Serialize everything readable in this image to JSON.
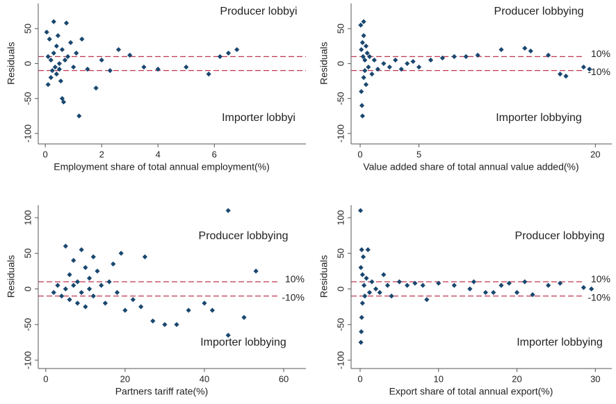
{
  "chart_data": [
    {
      "type": "scatter",
      "color": "#1a476f",
      "ref_color": "#c0364f",
      "x_label": "Employment share of total annual employment(%)",
      "y_label": "Residuals",
      "annotations": [
        "Producer lobbyi",
        "Importer lobbyi"
      ],
      "xlim": [
        -0.25,
        9.25
      ],
      "xticks": [
        0,
        2,
        4,
        6
      ],
      "ylim": [
        -115,
        86
      ],
      "yticks": [
        50,
        0,
        -50,
        -100
      ],
      "reference_lines": [
        10,
        -10
      ],
      "x": [
        0.05,
        0.1,
        0.1,
        0.15,
        0.2,
        0.2,
        0.25,
        0.3,
        0.3,
        0.35,
        0.4,
        0.4,
        0.45,
        0.5,
        0.5,
        0.55,
        0.6,
        0.6,
        0.65,
        0.7,
        0.75,
        0.8,
        0.9,
        1.0,
        1.1,
        1.2,
        1.3,
        1.5,
        1.8,
        2.0,
        2.3,
        2.6,
        3.0,
        3.5,
        4.0,
        5.0,
        5.8,
        6.2,
        6.5,
        6.8
      ],
      "values": [
        45,
        -30,
        10,
        35,
        -20,
        5,
        -10,
        60,
        15,
        -5,
        25,
        -15,
        40,
        -8,
        0,
        -25,
        20,
        -50,
        -55,
        5,
        58,
        10,
        30,
        -5,
        15,
        -75,
        35,
        -8,
        -35,
        5,
        -10,
        20,
        12,
        -5,
        -8,
        -5,
        -15,
        10,
        15,
        20
      ]
    },
    {
      "type": "scatter",
      "color": "#1a476f",
      "ref_color": "#c0364f",
      "x_label": "Value added share of total annual value added(%)",
      "y_label": "Residuals",
      "annotations": [
        "Producer lobbying",
        "Importer lobbying"
      ],
      "xlim": [
        -0.77,
        21.4
      ],
      "xticks": [
        0,
        5,
        20
      ],
      "ylim": [
        -115,
        86
      ],
      "yticks": [
        50,
        0,
        -50,
        -100
      ],
      "reference_lines": [
        {
          "value": 10,
          "label": "10%"
        },
        {
          "value": -10,
          "label": "-10%"
        }
      ],
      "x": [
        0.05,
        0.1,
        0.1,
        0.15,
        0.2,
        0.2,
        0.25,
        0.3,
        0.3,
        0.4,
        0.4,
        0.5,
        0.5,
        0.6,
        0.7,
        0.8,
        1.0,
        1.2,
        1.5,
        2.0,
        2.5,
        3.0,
        3.5,
        4.0,
        4.5,
        5.0,
        6.0,
        7.0,
        8.0,
        9.0,
        10.0,
        12.0,
        14.0,
        14.5,
        16.0,
        17.0,
        17.5,
        19.0,
        19.5,
        0.3
      ],
      "values": [
        55,
        -40,
        20,
        -60,
        30,
        -75,
        10,
        -20,
        40,
        -10,
        5,
        25,
        -30,
        15,
        -5,
        10,
        -15,
        5,
        -8,
        0,
        -5,
        5,
        -8,
        0,
        3,
        -5,
        5,
        8,
        10,
        10,
        12,
        20,
        22,
        18,
        12,
        -15,
        -18,
        -5,
        -8,
        60
      ]
    },
    {
      "type": "scatter",
      "color": "#1a476f",
      "ref_color": "#c0364f",
      "x_label": "Partners tariff rate(%)",
      "y_label": "Residuals",
      "annotations": [
        "Producer lobbying",
        "Importer lobbying"
      ],
      "xlim": [
        -1.9,
        65.6
      ],
      "xticks": [
        0,
        20,
        40,
        60
      ],
      "ylim": [
        -111.7,
        117.6
      ],
      "yticks": [
        100,
        50,
        0,
        -50,
        -100
      ],
      "reference_lines": [
        {
          "value": 10,
          "label": "10%"
        },
        {
          "value": -10,
          "label": "-10%"
        }
      ],
      "x": [
        2,
        3,
        4,
        5,
        5,
        6,
        6,
        7,
        7,
        8,
        8,
        9,
        9,
        10,
        10,
        11,
        11,
        12,
        12,
        13,
        14,
        15,
        16,
        17,
        18,
        19,
        20,
        22,
        24,
        25,
        27,
        30,
        33,
        36,
        40,
        42,
        46,
        46,
        50,
        53
      ],
      "values": [
        -5,
        5,
        -10,
        60,
        0,
        20,
        -15,
        40,
        5,
        -20,
        10,
        55,
        -5,
        30,
        -25,
        15,
        0,
        45,
        -10,
        25,
        5,
        -20,
        10,
        35,
        -5,
        50,
        -30,
        -15,
        -25,
        45,
        -45,
        -50,
        -50,
        -30,
        -20,
        -30,
        110,
        -65,
        -40,
        25
      ]
    },
    {
      "type": "scatter",
      "color": "#1a476f",
      "ref_color": "#c0364f",
      "x_label": "Export share of total annual export(%)",
      "y_label": "Residuals",
      "annotations": [
        "Producer lobbying",
        "Importer lobbying"
      ],
      "xlim": [
        -1.15,
        32.1
      ],
      "xticks": [
        0,
        10,
        20,
        30
      ],
      "ylim": [
        -111.7,
        117.6
      ],
      "yticks": [
        100,
        50,
        0,
        -50,
        -100
      ],
      "reference_lines": [
        {
          "value": 10,
          "label": "10%"
        },
        {
          "value": -10,
          "label": "-10%"
        }
      ],
      "x": [
        0.05,
        0.1,
        0.1,
        0.15,
        0.2,
        0.2,
        0.3,
        0.3,
        0.4,
        0.5,
        0.6,
        0.8,
        1.0,
        1.2,
        1.5,
        2.0,
        2.5,
        3.0,
        3.5,
        4.0,
        5.0,
        6.0,
        7.0,
        8.0,
        8.5,
        10.0,
        12.0,
        14.0,
        14.5,
        16.0,
        17.0,
        18.0,
        19.0,
        20.0,
        21.0,
        22.0,
        24.0,
        25.5,
        28.5,
        29.5
      ],
      "values": [
        110,
        -75,
        30,
        -60,
        55,
        -40,
        20,
        -20,
        45,
        5,
        -10,
        15,
        55,
        -5,
        10,
        0,
        -5,
        20,
        5,
        -10,
        10,
        5,
        8,
        5,
        -15,
        8,
        5,
        0,
        10,
        -5,
        -5,
        5,
        8,
        -5,
        10,
        -8,
        5,
        8,
        2,
        0
      ]
    }
  ]
}
